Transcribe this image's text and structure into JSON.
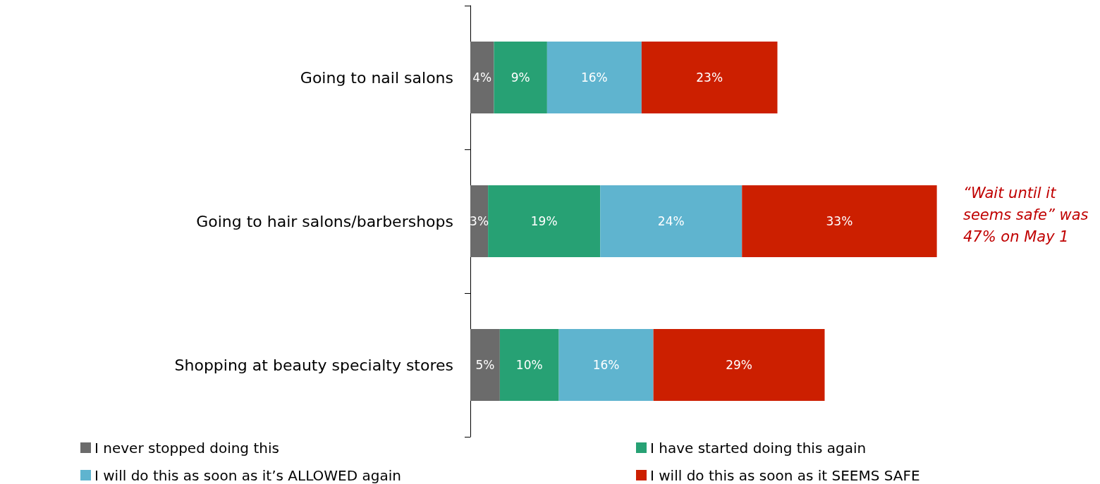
{
  "chart_data": {
    "type": "bar",
    "orientation": "horizontal",
    "stacked": true,
    "categories": [
      "Going to nail salons",
      "Going to hair salons/barbershops",
      "Shopping at beauty specialty stores"
    ],
    "series": [
      {
        "name": "I never stopped doing this",
        "color": "#6b6b6b",
        "values": [
          4,
          3,
          5
        ],
        "value_labels": [
          "4%",
          "3%",
          "5%"
        ]
      },
      {
        "name": "I have started doing this again",
        "color": "#27a174",
        "values": [
          9,
          19,
          10
        ],
        "value_labels": [
          "9%",
          "19%",
          "10%"
        ]
      },
      {
        "name": "I will do this as soon as it’s ALLOWED again",
        "color": "#5fb4cf",
        "values": [
          16,
          24,
          16
        ],
        "value_labels": [
          "16%",
          "24%",
          "16%"
        ]
      },
      {
        "name": "I will do this as soon as it SEEMS SAFE",
        "color": "#cc1f00",
        "values": [
          23,
          33,
          29
        ],
        "value_labels": [
          "23%",
          "33%",
          "29%"
        ]
      }
    ],
    "annotations": [
      "“Wait until it seems safe” was 47% on May 1"
    ],
    "legend": "bottom"
  }
}
